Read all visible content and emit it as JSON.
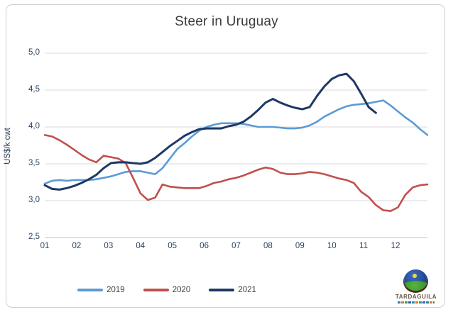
{
  "title": "Steer in Uruguay",
  "logo": {
    "name": "TARDAGUILA"
  },
  "chart_data": {
    "type": "line",
    "title": "Steer in Uruguay",
    "xlabel": "",
    "ylabel": "US$/k cwt",
    "ylim": [
      2.5,
      5.0
    ],
    "y_tick_step": 0.5,
    "y_tick_labels": [
      "5,0",
      "4,5",
      "4,0",
      "3,5",
      "3,0",
      "2,5"
    ],
    "x_unit": "week of year (weekly prices, Jan-Dec)",
    "xticklabels": [
      "01",
      "02",
      "03",
      "04",
      "05",
      "06",
      "07",
      "08",
      "09",
      "10",
      "11",
      "12"
    ],
    "grid": "horizontal",
    "legend_position": "bottom-center",
    "series": [
      {
        "name": "2019",
        "color": "#5B9BD5",
        "values": [
          3.23,
          3.27,
          3.28,
          3.27,
          3.28,
          3.28,
          3.28,
          3.29,
          3.31,
          3.33,
          3.36,
          3.39,
          3.4,
          3.4,
          3.38,
          3.36,
          3.44,
          3.57,
          3.7,
          3.78,
          3.87,
          3.95,
          4.0,
          4.03,
          4.05,
          4.05,
          4.05,
          4.04,
          4.02,
          4.0,
          4.0,
          4.0,
          3.99,
          3.98,
          3.98,
          3.99,
          4.02,
          4.07,
          4.14,
          4.19,
          4.24,
          4.28,
          4.3,
          4.31,
          4.32,
          4.34,
          4.36,
          4.29,
          4.21,
          4.13,
          4.06,
          3.97,
          3.89
        ]
      },
      {
        "name": "2020",
        "color": "#C0504D",
        "values": [
          3.89,
          3.87,
          3.82,
          3.76,
          3.69,
          3.62,
          3.56,
          3.52,
          3.61,
          3.59,
          3.57,
          3.51,
          3.31,
          3.1,
          3.01,
          3.04,
          3.22,
          3.19,
          3.18,
          3.17,
          3.17,
          3.17,
          3.2,
          3.24,
          3.26,
          3.29,
          3.31,
          3.34,
          3.38,
          3.42,
          3.45,
          3.43,
          3.38,
          3.36,
          3.36,
          3.37,
          3.39,
          3.38,
          3.36,
          3.33,
          3.3,
          3.28,
          3.24,
          3.12,
          3.05,
          2.94,
          2.87,
          2.86,
          2.91,
          3.08,
          3.18,
          3.21,
          3.22
        ]
      },
      {
        "name": "2021",
        "color": "#1F3864",
        "values": [
          3.21,
          3.16,
          3.15,
          3.17,
          3.2,
          3.24,
          3.29,
          3.35,
          3.44,
          3.51,
          3.52,
          3.52,
          3.51,
          3.5,
          3.52,
          3.58,
          3.66,
          3.74,
          3.81,
          3.88,
          3.93,
          3.97,
          3.98,
          3.98,
          3.98,
          4.01,
          4.03,
          4.07,
          4.14,
          4.23,
          4.33,
          4.38,
          4.33,
          4.29,
          4.26,
          4.24,
          4.27,
          4.42,
          4.55,
          4.65,
          4.7,
          4.72,
          4.62,
          4.45,
          4.27,
          4.19
        ]
      }
    ]
  }
}
